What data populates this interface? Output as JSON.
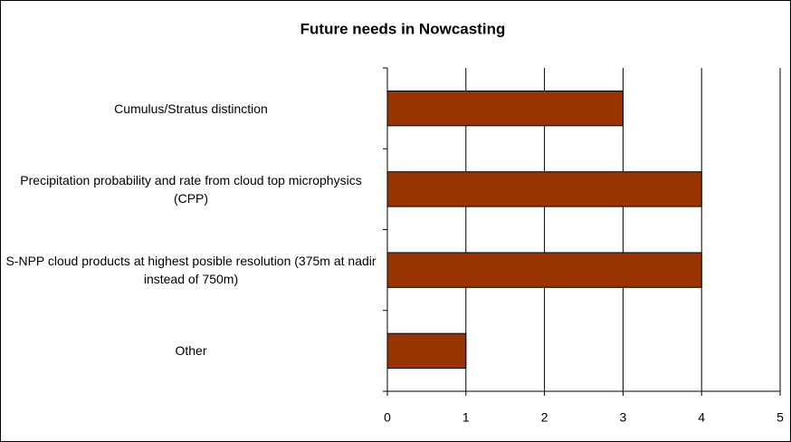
{
  "chart_data": {
    "type": "bar",
    "orientation": "horizontal",
    "title": "Future needs in Nowcasting",
    "categories": [
      "Cumulus/Stratus distinction",
      "Precipitation probability and rate from cloud top microphysics (CPP)",
      "S-NPP cloud products at highest posible resolution (375m at nadir instead of 750m)",
      "Other"
    ],
    "values": [
      3,
      4,
      4,
      1
    ],
    "color": "#993300",
    "xlim": [
      0,
      5
    ],
    "xticks": [
      0,
      1,
      2,
      3,
      4,
      5
    ],
    "grid": true
  }
}
